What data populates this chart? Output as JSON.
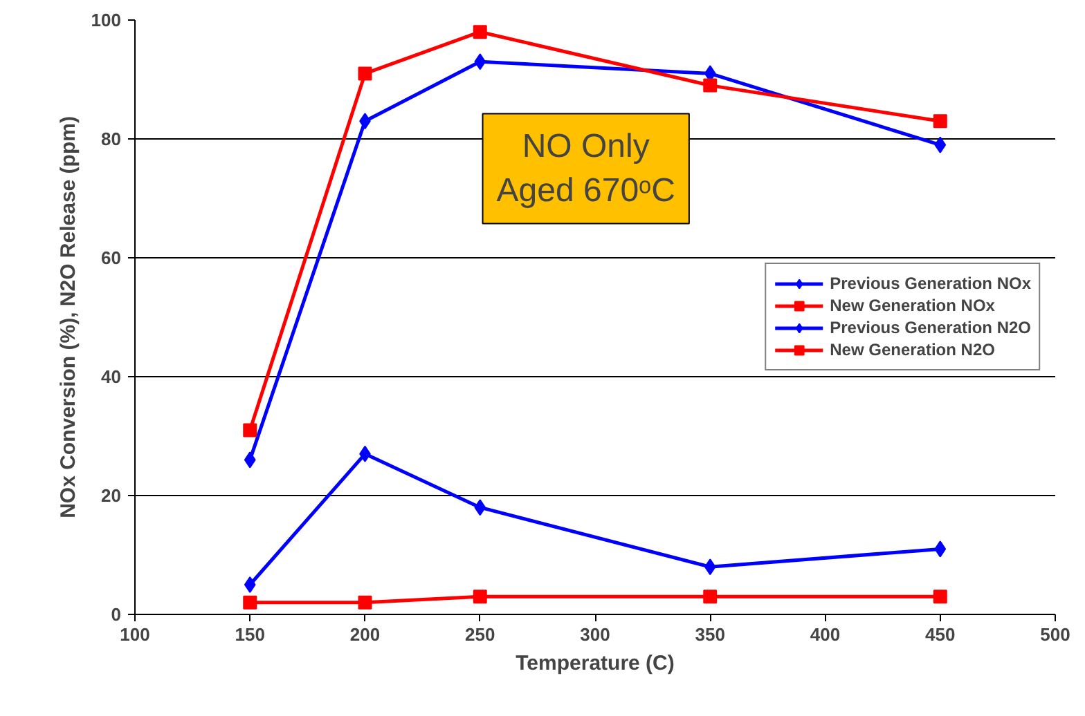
{
  "chart_data": {
    "type": "line",
    "xlabel": "Temperature (C)",
    "ylabel": "NOx Conversion (%), N2O Release (ppm)",
    "x": [
      150,
      200,
      250,
      350,
      450
    ],
    "series": [
      {
        "name": "Previous Generation NOx",
        "color": "#0000ff",
        "values": [
          26,
          83,
          93,
          91,
          79
        ],
        "marker": "diamond"
      },
      {
        "name": "New Generation NOx",
        "color": "#ff0000",
        "values": [
          31,
          91,
          98,
          89,
          83
        ],
        "marker": "square"
      },
      {
        "name": "Previous Generation N2O",
        "color": "#0000ff",
        "values": [
          5,
          27,
          18,
          8,
          11
        ],
        "marker": "diamond"
      },
      {
        "name": "New Generation N2O",
        "color": "#ff0000",
        "values": [
          2,
          2,
          3,
          3,
          3
        ],
        "marker": "square"
      }
    ],
    "xlim": [
      100,
      500
    ],
    "xticks": [
      100,
      150,
      200,
      250,
      300,
      350,
      400,
      450,
      500
    ],
    "ylim": [
      0,
      100
    ],
    "yticks": [
      0,
      20,
      40,
      60,
      80,
      100
    ],
    "grid": "y",
    "legend": "right",
    "annotations": [
      "NO Only\nAged 670ᵒC"
    ]
  }
}
